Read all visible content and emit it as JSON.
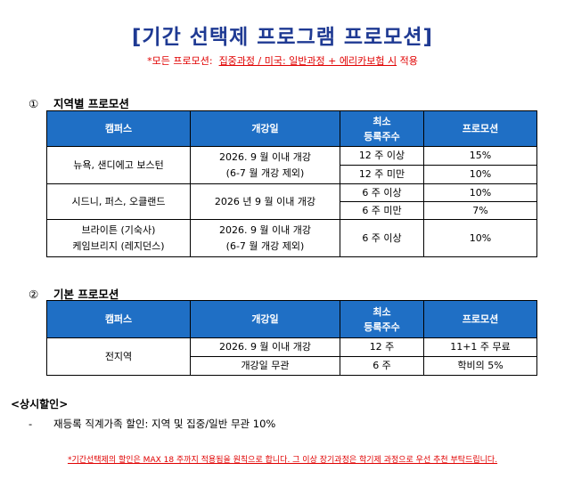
{
  "title": "[기간 선택제 프로그램 프로모션]",
  "subtitle": {
    "prefix": "*모든 프로모션:  ",
    "underlined": "집중과정 / 미국: 일반과정 + 에리카보험 시",
    "suffix": " 적용"
  },
  "section1": {
    "number": "①",
    "heading": "지역별 프로모션",
    "headers": [
      "캠퍼스",
      "개강일",
      "최소\n등록주수",
      "프로모션"
    ],
    "rows": [
      {
        "campus": "뉴욕, 샌디에고 보스턴",
        "start": "2026. 9 월 이내 개강\n(6-7 월 개강 제외)",
        "weeks": [
          "12 주 이상",
          "12 주 미만"
        ],
        "promo": [
          "15%",
          "10%"
        ]
      },
      {
        "campus": "시드니, 퍼스, 오클랜드",
        "start": "2026 년 9 월 이내 개강",
        "weeks": [
          "6 주 이상",
          "6 주 미만"
        ],
        "promo": [
          "10%",
          "7%"
        ]
      },
      {
        "campus": "브라이튼 (기숙사)\n케임브리지 (레지던스)",
        "start": "2026. 9 월 이내 개강\n(6-7 월 개강 제외)",
        "weeks": [
          "6 주 이상"
        ],
        "promo": [
          "10%"
        ]
      }
    ]
  },
  "section2": {
    "number": "②",
    "heading": "기본 프로모션",
    "headers": [
      "캠퍼스",
      "개강일",
      "최소\n등록주수",
      "프로모션"
    ],
    "campus": "전지역",
    "rows": [
      {
        "start": "2026. 9 월 이내 개강",
        "weeks": "12 주",
        "promo": "11+1 주 무료"
      },
      {
        "start": "개강일 무관",
        "weeks": "6 주",
        "promo": "학비의 5%"
      }
    ]
  },
  "notes": {
    "heading": "<상시할인>",
    "dash": "-",
    "item": "재등록 직계가족 할인: 지역 및 집중/일반 무관 10%"
  },
  "footnote": "*기간선택제의 할인은 MAX 18 주까지 적용됨을 원칙으로 합니다. 그 이상 장기과정은 학기제 과정으로 우선 추천 부탁드립니다."
}
